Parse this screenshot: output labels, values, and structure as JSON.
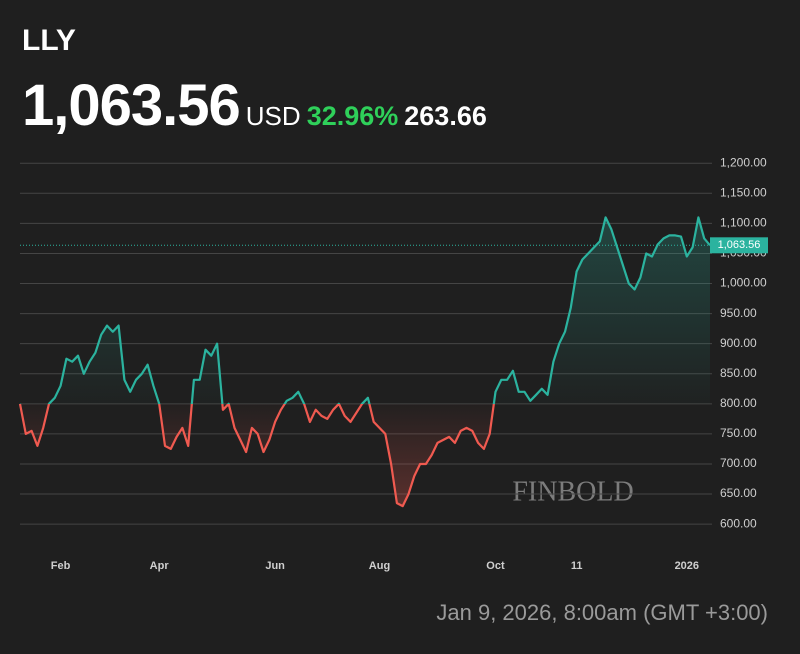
{
  "chart_data": {
    "type": "line",
    "title": "LLY",
    "price": {
      "value": 1063.56,
      "label": "1,063.56"
    },
    "currency": "USD",
    "change_pct": {
      "value": 32.96,
      "label": "32.96%"
    },
    "change": 263.66,
    "watermark": "FINBOLD",
    "timestamp": "Jan 9, 2026, 8:00am (GMT +3:00)",
    "up_color": "#2bb39f",
    "down_color": "#f05a50",
    "grid": true,
    "categories": [
      null,
      null,
      null,
      null,
      null,
      null,
      null,
      "Feb",
      null,
      null,
      null,
      null,
      null,
      null,
      null,
      null,
      null,
      null,
      null,
      null,
      null,
      null,
      null,
      null,
      "Apr",
      null,
      null,
      null,
      null,
      null,
      null,
      null,
      null,
      null,
      null,
      null,
      null,
      null,
      null,
      null,
      null,
      null,
      null,
      null,
      "Jun",
      null,
      null,
      null,
      null,
      null,
      null,
      null,
      null,
      null,
      null,
      null,
      null,
      null,
      null,
      null,
      null,
      null,
      "Aug",
      null,
      null,
      null,
      null,
      null,
      null,
      null,
      null,
      null,
      null,
      null,
      null,
      null,
      null,
      null,
      null,
      null,
      null,
      null,
      "Oct",
      null,
      null,
      null,
      null,
      null,
      null,
      null,
      null,
      null,
      null,
      null,
      null,
      null,
      "11",
      null,
      null,
      null,
      null,
      null,
      null,
      null,
      null,
      null,
      null,
      null,
      null,
      null,
      null,
      null,
      null,
      null,
      null,
      "2026",
      null,
      null,
      null,
      null
    ],
    "values": [
      800,
      750,
      755,
      730,
      760,
      800,
      810,
      830,
      875,
      870,
      880,
      850,
      870,
      885,
      915,
      930,
      920,
      930,
      840,
      820,
      840,
      850,
      865,
      830,
      800,
      730,
      725,
      745,
      760,
      730,
      840,
      840,
      890,
      880,
      900,
      790,
      800,
      760,
      740,
      720,
      760,
      750,
      720,
      740,
      770,
      790,
      805,
      810,
      820,
      800,
      770,
      790,
      780,
      775,
      790,
      800,
      780,
      770,
      785,
      800,
      810,
      770,
      760,
      750,
      700,
      635,
      630,
      650,
      680,
      700,
      700,
      715,
      735,
      740,
      745,
      735,
      755,
      760,
      755,
      735,
      725,
      750,
      820,
      840,
      840,
      855,
      820,
      820,
      805,
      815,
      825,
      815,
      870,
      900,
      920,
      960,
      1020,
      1040,
      1050,
      1060,
      1070,
      1110,
      1090,
      1060,
      1030,
      1000,
      990,
      1010,
      1050,
      1045,
      1065,
      1075,
      1080,
      1080,
      1078,
      1045,
      1060,
      1110,
      1075,
      1063.56
    ],
    "ylim": [
      557,
      1222
    ],
    "yticks": [
      {
        "value": 600,
        "label": "600.00"
      },
      {
        "value": 650,
        "label": "650.00"
      },
      {
        "value": 700,
        "label": "700.00"
      },
      {
        "value": 750,
        "label": "750.00"
      },
      {
        "value": 800,
        "label": "800.00"
      },
      {
        "value": 850,
        "label": "850.00"
      },
      {
        "value": 900,
        "label": "900.00"
      },
      {
        "value": 950,
        "label": "950.00"
      },
      {
        "value": 1000,
        "label": "1,000.00"
      },
      {
        "value": 1050,
        "label": "1,050.00"
      },
      {
        "value": 1100,
        "label": "1,100.00"
      },
      {
        "value": 1150,
        "label": "1,150.00"
      },
      {
        "value": 1200,
        "label": "1,200.00"
      }
    ]
  }
}
